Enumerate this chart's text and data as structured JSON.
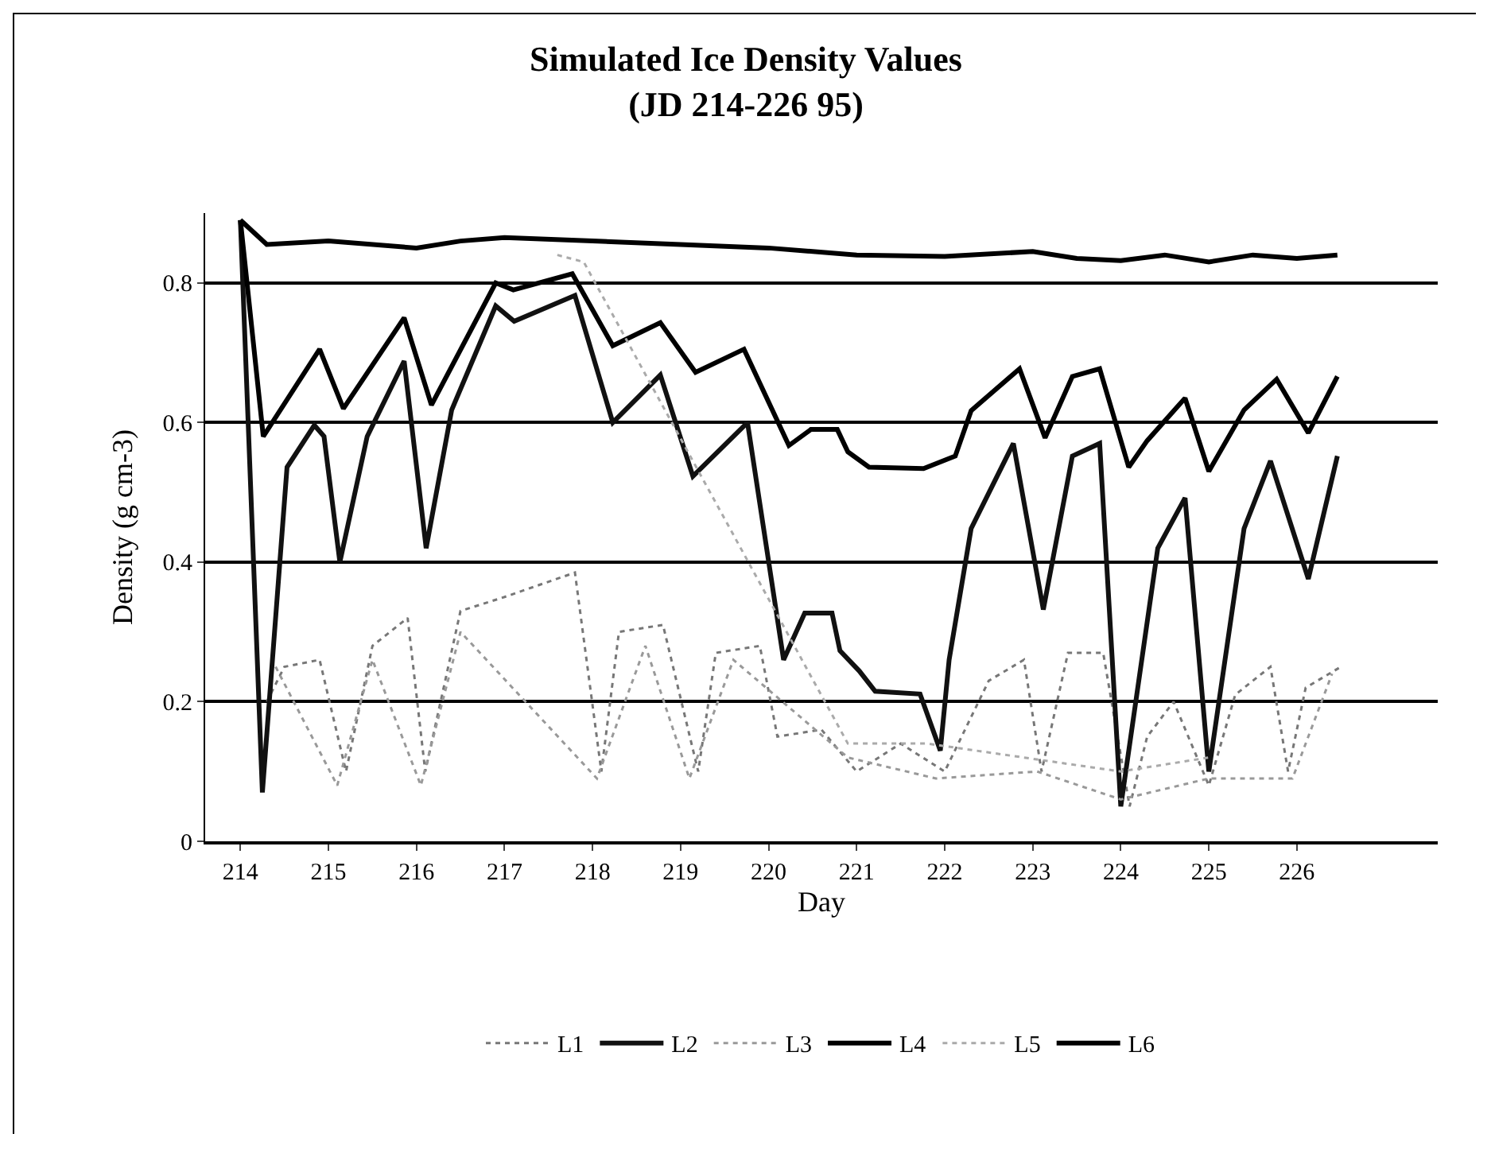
{
  "chart_data": {
    "type": "line",
    "title": "Simulated Ice Density Values\n(JD 214-226 95)",
    "xlabel": "Day",
    "ylabel": "Density (g cm-3)",
    "xlim": [
      213.6,
      227.6
    ],
    "xticks": [
      214,
      215,
      216,
      217,
      218,
      219,
      220,
      221,
      222,
      223,
      224,
      225,
      226
    ],
    "ylim": [
      0,
      0.9
    ],
    "yticks": [
      0,
      0.2,
      0.4,
      0.6,
      0.8
    ],
    "grid": "y",
    "legend": "bottom",
    "marker": "none",
    "series": [
      {
        "name": "L1",
        "color": "#777777",
        "line_style": "dotted",
        "x": [
          214.3,
          214.5,
          214.9,
          215.2,
          215.5,
          215.9,
          216.1,
          216.5,
          217,
          217.8,
          218.1,
          218.3,
          218.8,
          219.2,
          219.4,
          219.9,
          220.1,
          220.6,
          221,
          221.5,
          222,
          222.5,
          222.9,
          223.1,
          223.4,
          223.8,
          224.1,
          224.3,
          224.6,
          225,
          225.3,
          225.7,
          225.9,
          226.1,
          226.5
        ],
        "values": [
          0.2,
          0.25,
          0.26,
          0.1,
          0.28,
          0.32,
          0.1,
          0.33,
          0.35,
          0.385,
          0.1,
          0.3,
          0.31,
          0.1,
          0.27,
          0.28,
          0.15,
          0.16,
          0.1,
          0.14,
          0.1,
          0.23,
          0.26,
          0.1,
          0.27,
          0.27,
          0.05,
          0.15,
          0.2,
          0.08,
          0.21,
          0.25,
          0.1,
          0.22,
          0.25
        ]
      },
      {
        "name": "L2",
        "color": "#111111",
        "line_style": "solid",
        "x": [
          214,
          214.25,
          214.53,
          214.84,
          214.95,
          215.13,
          215.44,
          215.86,
          216.11,
          216.4,
          216.9,
          217.11,
          217.8,
          218.23,
          218.77,
          219.14,
          219.76,
          220.17,
          220.41,
          220.72,
          220.81,
          221.03,
          221.21,
          221.72,
          221.95,
          222.05,
          222.3,
          222.78,
          223.12,
          223.45,
          223.76,
          224.0,
          224.42,
          224.73,
          225.0,
          225.4,
          225.7,
          226.13,
          226.46
        ],
        "values": [
          0.89,
          0.07,
          0.536,
          0.596,
          0.58,
          0.4,
          0.58,
          0.688,
          0.42,
          0.618,
          0.767,
          0.745,
          0.782,
          0.6,
          0.668,
          0.523,
          0.6,
          0.26,
          0.327,
          0.327,
          0.273,
          0.244,
          0.215,
          0.211,
          0.13,
          0.26,
          0.448,
          0.57,
          0.332,
          0.552,
          0.57,
          0.05,
          0.42,
          0.492,
          0.1,
          0.448,
          0.545,
          0.376,
          0.552
        ]
      },
      {
        "name": "L3",
        "color": "#999999",
        "line_style": "dotted",
        "x": [
          214.4,
          215.1,
          215.5,
          216.05,
          216.5,
          218.05,
          218.6,
          219.1,
          219.6,
          220.9,
          221.9,
          223.05,
          224.0,
          225.0,
          225.95,
          226.4
        ],
        "values": [
          0.25,
          0.08,
          0.26,
          0.08,
          0.3,
          0.09,
          0.28,
          0.09,
          0.26,
          0.12,
          0.09,
          0.1,
          0.06,
          0.09,
          0.09,
          0.24
        ]
      },
      {
        "name": "L4",
        "color": "#000000",
        "line_style": "solid",
        "x": [
          214,
          214.26,
          214.9,
          215.17,
          215.86,
          216.17,
          216.9,
          217.1,
          217.77,
          218.23,
          218.77,
          219.17,
          219.72,
          220.23,
          220.48,
          220.78,
          220.9,
          221.14,
          221.76,
          222.12,
          222.3,
          222.85,
          223.14,
          223.45,
          223.76,
          224.09,
          224.3,
          224.73,
          225.0,
          225.4,
          225.77,
          226.13,
          226.46
        ],
        "values": [
          0.89,
          0.58,
          0.705,
          0.62,
          0.75,
          0.625,
          0.8,
          0.79,
          0.813,
          0.71,
          0.743,
          0.672,
          0.705,
          0.567,
          0.59,
          0.59,
          0.558,
          0.536,
          0.534,
          0.552,
          0.617,
          0.677,
          0.578,
          0.666,
          0.677,
          0.536,
          0.574,
          0.635,
          0.53,
          0.618,
          0.662,
          0.585,
          0.666
        ]
      },
      {
        "name": "L5",
        "color": "#aaaaaa",
        "line_style": "dotted",
        "x": [
          217.6,
          217.9,
          220.9,
          221.8,
          224.0,
          225.0
        ],
        "values": [
          0.84,
          0.83,
          0.14,
          0.14,
          0.1,
          0.12
        ]
      },
      {
        "name": "L6",
        "color": "#000000",
        "line_style": "solid",
        "x": [
          214,
          214.3,
          215,
          216,
          216.5,
          217,
          218,
          219,
          220,
          221,
          222,
          223,
          223.5,
          224,
          224.5,
          225,
          225.5,
          226,
          226.46
        ],
        "values": [
          0.89,
          0.855,
          0.86,
          0.85,
          0.86,
          0.865,
          0.86,
          0.855,
          0.85,
          0.84,
          0.838,
          0.845,
          0.835,
          0.832,
          0.84,
          0.83,
          0.84,
          0.835,
          0.84
        ]
      }
    ]
  }
}
